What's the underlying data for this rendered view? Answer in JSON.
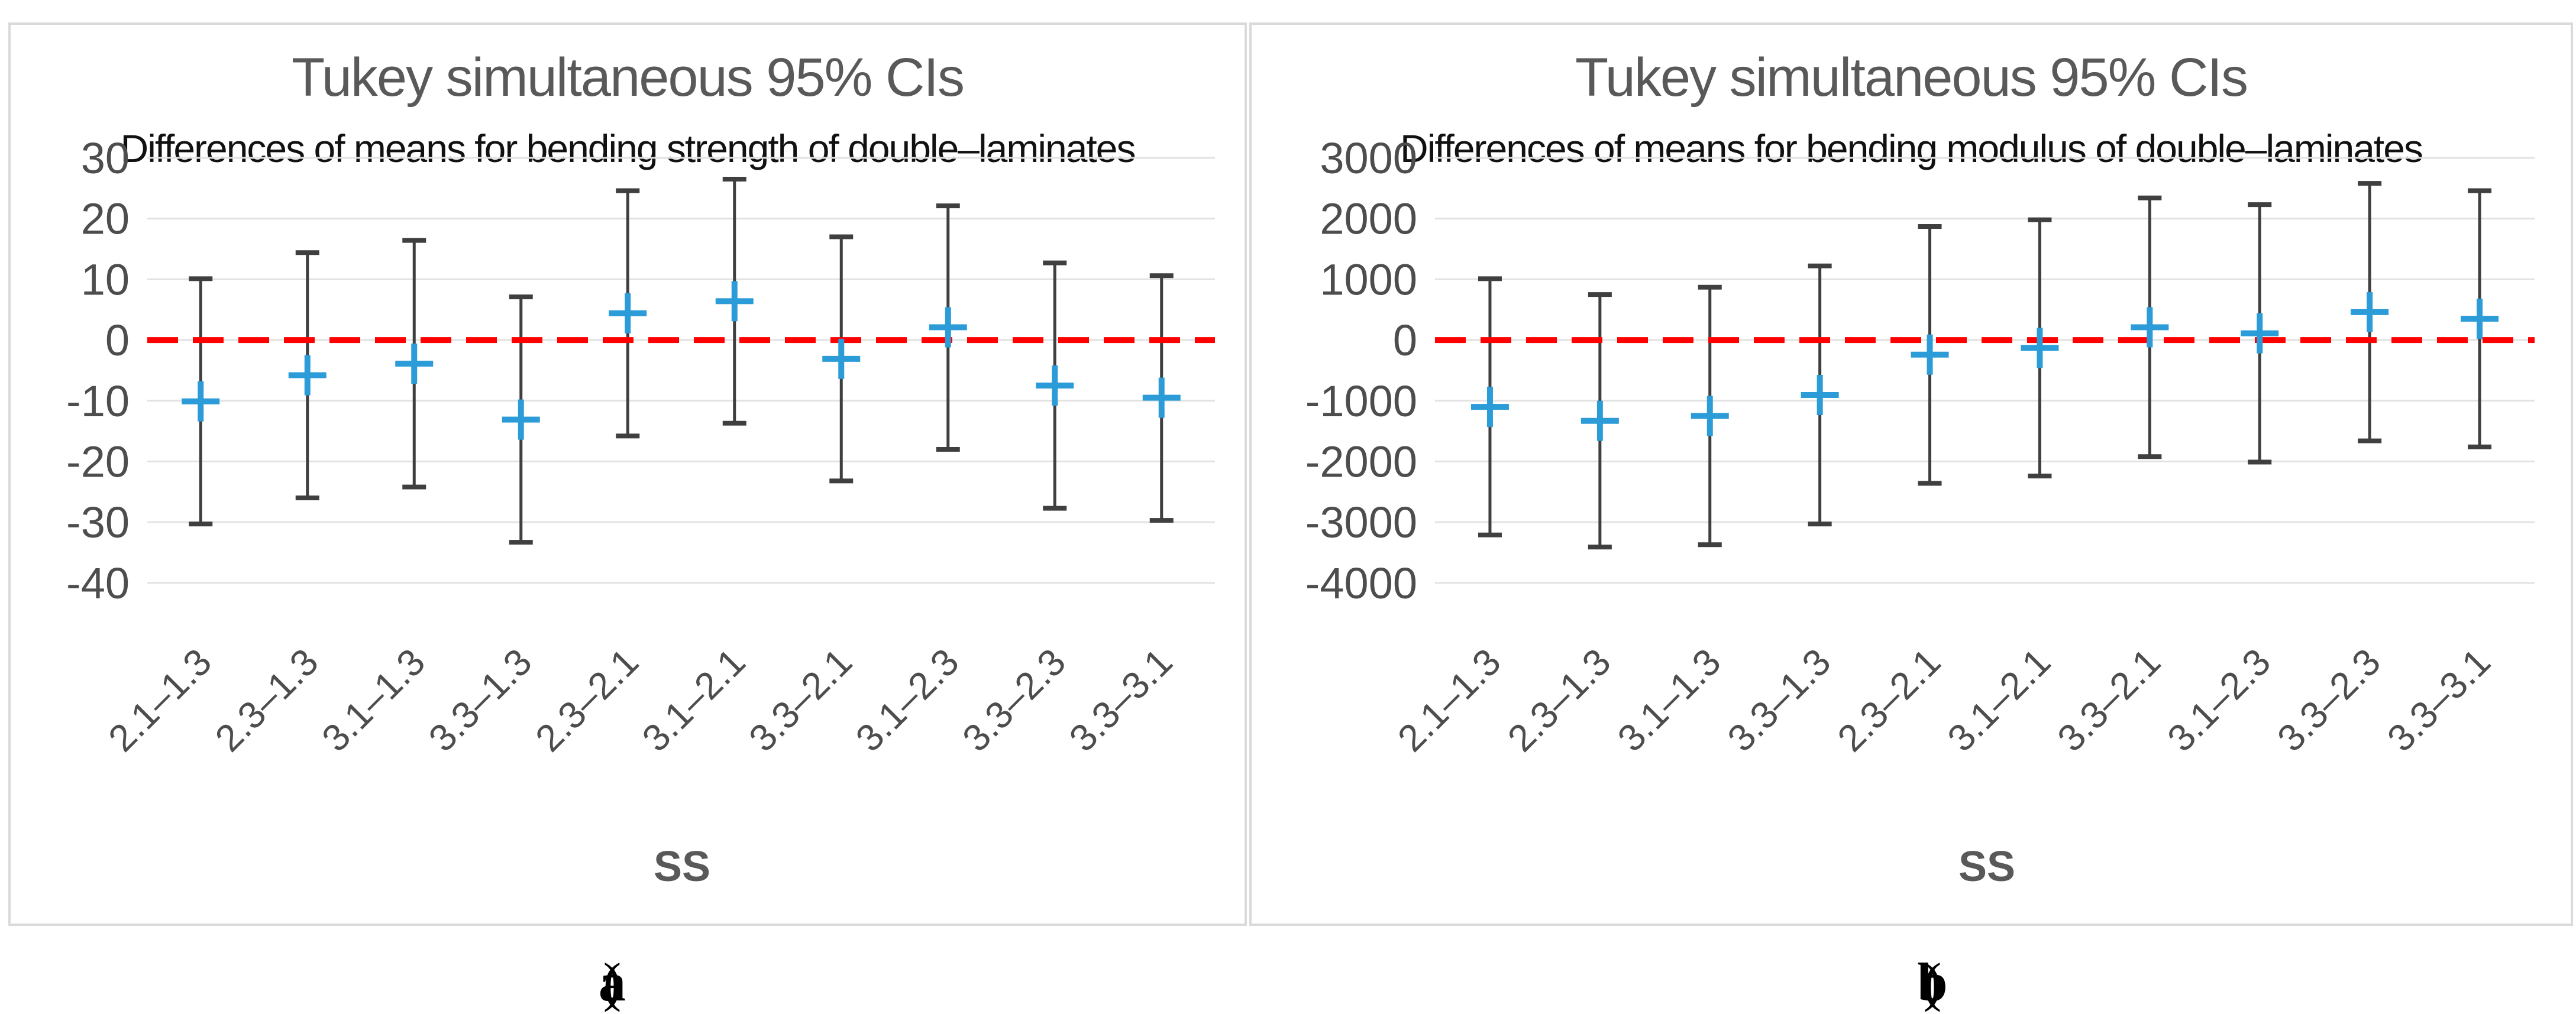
{
  "figure": {
    "caption_a_open": "(",
    "caption_a_letter": "a",
    "caption_a_close": ")",
    "caption_b_open": "(",
    "caption_b_letter": "b",
    "caption_b_close": ")"
  },
  "colors": {
    "title_gray": "#595959",
    "subtitle_black": "#111111",
    "tick_label_gray": "#4d4d4d",
    "error_bar_gray": "#3f3f3f",
    "marker_blue": "#2b9cd8",
    "zero_line_red": "#ff0000",
    "gridline_gray": "#e2e2e2",
    "panel_border_gray": "#dadada"
  },
  "chart_data": [
    {
      "type": "scatter",
      "subtype": "interval-plot-with-error-bars",
      "title": "Tukey simultaneous 95% CIs",
      "subtitle": "Differences of means for bending strength of double–laminates",
      "xlabel": "SS",
      "ylabel": "",
      "grid": true,
      "legend": "none",
      "zero_line": 0,
      "ylim": [
        -40,
        30
      ],
      "yticks": [
        30,
        20,
        10,
        0,
        -10,
        -20,
        -30,
        -40
      ],
      "categories": [
        "2.1–1.3",
        "2.3–1.3",
        "3.1–1.3",
        "3.3–1.3",
        "2.3–2.1",
        "3.1–2.1",
        "3.3–2.1",
        "3.1–2.3",
        "3.3–2.3",
        "3.3–3.1"
      ],
      "series": [
        {
          "name": "mean difference",
          "values": [
            -10.1,
            -5.8,
            -3.9,
            -13.1,
            4.4,
            6.4,
            -3.1,
            2.1,
            -7.5,
            -9.5
          ]
        },
        {
          "name": "upper 95% CI limit",
          "values": [
            10.1,
            14.4,
            16.4,
            7.1,
            24.6,
            26.5,
            17.0,
            22.1,
            12.7,
            10.6
          ]
        },
        {
          "name": "lower 95% CI limit",
          "values": [
            -30.3,
            -26.0,
            -24.2,
            -33.3,
            -15.8,
            -13.7,
            -23.2,
            -18.0,
            -27.7,
            -29.7
          ]
        }
      ]
    },
    {
      "type": "scatter",
      "subtype": "interval-plot-with-error-bars",
      "title": "Tukey simultaneous 95% CIs",
      "subtitle": "Differences of means for bending modulus of double–laminates",
      "xlabel": "SS",
      "ylabel": "",
      "grid": true,
      "legend": "none",
      "zero_line": 0,
      "ylim": [
        -4000,
        3000
      ],
      "yticks": [
        3000,
        2000,
        1000,
        0,
        -1000,
        -2000,
        -3000,
        -4000
      ],
      "categories": [
        "2.1–1.3",
        "2.3–1.3",
        "3.1–1.3",
        "3.3–1.3",
        "2.3–2.1",
        "3.1–2.1",
        "3.3–2.1",
        "3.1–2.3",
        "3.3–2.3",
        "3.3–3.1"
      ],
      "series": [
        {
          "name": "mean difference",
          "values": [
            -1100,
            -1330,
            -1250,
            -905,
            -240,
            -130,
            210,
            110,
            460,
            350
          ]
        },
        {
          "name": "upper 95% CI limit",
          "values": [
            1010,
            750,
            870,
            1220,
            1870,
            1980,
            2340,
            2230,
            2580,
            2460
          ]
        },
        {
          "name": "lower 95% CI limit",
          "values": [
            -3210,
            -3410,
            -3370,
            -3030,
            -2360,
            -2240,
            -1920,
            -2010,
            -1660,
            -1760
          ]
        }
      ]
    }
  ]
}
